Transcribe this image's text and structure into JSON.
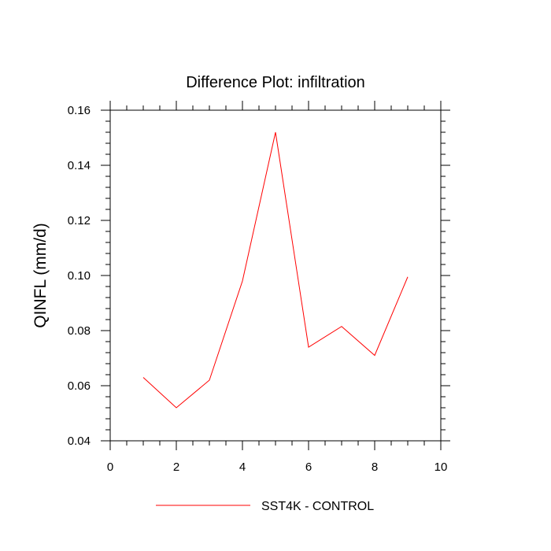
{
  "chart_data": {
    "type": "line",
    "title": "Difference Plot: infiltration",
    "xlabel": "",
    "ylabel": "QINFL  (mm/d)",
    "xlim": [
      0,
      10
    ],
    "ylim": [
      0.04,
      0.16
    ],
    "x_ticks": [
      0,
      2,
      4,
      6,
      8,
      10
    ],
    "x_tick_labels": [
      "0",
      "2",
      "4",
      "6",
      "8",
      "10"
    ],
    "y_ticks": [
      0.04,
      0.06,
      0.08,
      0.1,
      0.12,
      0.14,
      0.16
    ],
    "y_tick_labels": [
      "0.04",
      "0.06",
      "0.08",
      "0.10",
      "0.12",
      "0.14",
      "0.16"
    ],
    "grid": false,
    "legend_position": "bottom-center",
    "series": [
      {
        "name": "SST4K - CONTROL",
        "color": "#ff0000",
        "x": [
          1,
          2,
          3,
          4,
          5,
          6,
          7,
          8,
          9
        ],
        "y": [
          0.063,
          0.052,
          0.062,
          0.098,
          0.152,
          0.074,
          0.0815,
          0.071,
          0.0995
        ]
      }
    ]
  }
}
